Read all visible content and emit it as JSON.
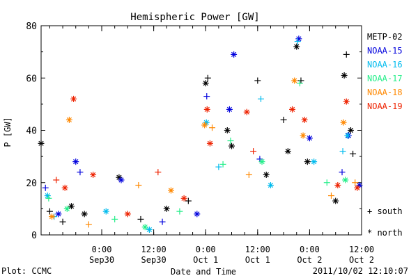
{
  "chart_data": {
    "type": "scatter",
    "title": "Hemispheric Power [GW]",
    "xlabel": "Date and Time",
    "ylabel": "P [GW]",
    "ylim": [
      0,
      80
    ],
    "xlim": [
      "2011-09-29 10:00",
      "2011-10-02 12:00"
    ],
    "y_ticks": [
      "0",
      "20",
      "40",
      "60",
      "80"
    ],
    "x_ticks": [
      {
        "t": "2011-09-30 00:00",
        "line1": "0:00",
        "line2": "Sep30"
      },
      {
        "t": "2011-09-30 12:00",
        "line1": "12:00",
        "line2": "Sep30"
      },
      {
        "t": "2011-10-01 00:00",
        "line1": "0:00",
        "line2": "Oct 1"
      },
      {
        "t": "2011-10-01 12:00",
        "line1": "12:00",
        "line2": "Oct 1"
      },
      {
        "t": "2011-10-02 00:00",
        "line1": "0:00",
        "line2": "Oct 2"
      },
      {
        "t": "2011-10-02 12:00",
        "line1": "12:00",
        "line2": "Oct 2"
      }
    ],
    "grid": false,
    "legend_position": "right",
    "symbol_legend": [
      {
        "symbol": "+",
        "label": "south"
      },
      {
        "symbol": "*",
        "label": "north"
      }
    ],
    "series": [
      {
        "name": "METP-02",
        "color": "#000000",
        "points": [
          {
            "x": "2011-09-29 10:00",
            "y": 35,
            "s": "*"
          },
          {
            "x": "2011-09-29 12:00",
            "y": 9,
            "s": "+"
          },
          {
            "x": "2011-09-29 15:00",
            "y": 5,
            "s": "+"
          },
          {
            "x": "2011-09-29 17:00",
            "y": 11,
            "s": "*"
          },
          {
            "x": "2011-09-29 20:00",
            "y": 8,
            "s": "*"
          },
          {
            "x": "2011-09-30 04:00",
            "y": 22,
            "s": "*"
          },
          {
            "x": "2011-09-30 09:00",
            "y": 6,
            "s": "+"
          },
          {
            "x": "2011-09-30 15:00",
            "y": 10,
            "s": "*"
          },
          {
            "x": "2011-09-30 20:00",
            "y": 13,
            "s": "+"
          },
          {
            "x": "2011-10-01 00:00",
            "y": 58,
            "s": "*"
          },
          {
            "x": "2011-10-01 00:30",
            "y": 60,
            "s": "+"
          },
          {
            "x": "2011-10-01 05:00",
            "y": 40,
            "s": "*"
          },
          {
            "x": "2011-10-01 06:00",
            "y": 34,
            "s": "*"
          },
          {
            "x": "2011-10-01 12:00",
            "y": 59,
            "s": "+"
          },
          {
            "x": "2011-10-01 14:00",
            "y": 23,
            "s": "*"
          },
          {
            "x": "2011-10-01 18:00",
            "y": 44,
            "s": "+"
          },
          {
            "x": "2011-10-01 19:00",
            "y": 32,
            "s": "*"
          },
          {
            "x": "2011-10-01 21:00",
            "y": 72,
            "s": "*"
          },
          {
            "x": "2011-10-01 22:00",
            "y": 59,
            "s": "+"
          },
          {
            "x": "2011-10-01 23:30",
            "y": 28,
            "s": "*"
          },
          {
            "x": "2011-10-02 06:00",
            "y": 13,
            "s": "*"
          },
          {
            "x": "2011-10-02 08:00",
            "y": 61,
            "s": "*"
          },
          {
            "x": "2011-10-02 08:30",
            "y": 69,
            "s": "+"
          },
          {
            "x": "2011-10-02 09:30",
            "y": 40,
            "s": "*"
          },
          {
            "x": "2011-10-02 10:00",
            "y": 31,
            "s": "+"
          }
        ]
      },
      {
        "name": "NOAA-15",
        "color": "#0000dd",
        "points": [
          {
            "x": "2011-09-29 11:00",
            "y": 18,
            "s": "+"
          },
          {
            "x": "2011-09-29 14:00",
            "y": 8,
            "s": "*"
          },
          {
            "x": "2011-09-29 18:00",
            "y": 28,
            "s": "*"
          },
          {
            "x": "2011-09-29 19:00",
            "y": 24,
            "s": "+"
          },
          {
            "x": "2011-09-30 04:30",
            "y": 21,
            "s": "*"
          },
          {
            "x": "2011-09-30 14:00",
            "y": 5,
            "s": "+"
          },
          {
            "x": "2011-09-30 22:00",
            "y": 8,
            "s": "*"
          },
          {
            "x": "2011-10-01 00:15",
            "y": 53,
            "s": "+"
          },
          {
            "x": "2011-10-01 05:30",
            "y": 48,
            "s": "*"
          },
          {
            "x": "2011-10-01 06:30",
            "y": 69,
            "s": "*"
          },
          {
            "x": "2011-10-01 12:30",
            "y": 29,
            "s": "+"
          },
          {
            "x": "2011-10-01 21:30",
            "y": 75,
            "s": "*"
          },
          {
            "x": "2011-10-02 00:00",
            "y": 37,
            "s": "*"
          },
          {
            "x": "2011-10-02 07:30",
            "y": 24,
            "s": "+"
          },
          {
            "x": "2011-10-02 09:00",
            "y": 38,
            "s": "*"
          },
          {
            "x": "2011-10-02 11:30",
            "y": 19,
            "s": "*"
          }
        ]
      },
      {
        "name": "NOAA-16",
        "color": "#00bbee",
        "points": [
          {
            "x": "2011-09-29 11:30",
            "y": 15,
            "s": "*"
          },
          {
            "x": "2011-09-29 13:00",
            "y": 7,
            "s": "+"
          },
          {
            "x": "2011-09-30 01:00",
            "y": 9,
            "s": "*"
          },
          {
            "x": "2011-09-30 11:00",
            "y": 2,
            "s": "*"
          },
          {
            "x": "2011-10-01 00:10",
            "y": 43,
            "s": "*"
          },
          {
            "x": "2011-10-01 03:00",
            "y": 26,
            "s": "+"
          },
          {
            "x": "2011-10-01 12:45",
            "y": 52,
            "s": "+"
          },
          {
            "x": "2011-10-01 15:00",
            "y": 19,
            "s": "*"
          },
          {
            "x": "2011-10-01 21:15",
            "y": 74,
            "s": "+"
          },
          {
            "x": "2011-10-02 01:00",
            "y": 28,
            "s": "*"
          },
          {
            "x": "2011-10-02 07:40",
            "y": 32,
            "s": "+"
          },
          {
            "x": "2011-10-02 08:45",
            "y": 38,
            "s": "*"
          }
        ]
      },
      {
        "name": "NOAA-17",
        "color": "#22ee88",
        "points": [
          {
            "x": "2011-09-29 11:45",
            "y": 14,
            "s": "+"
          },
          {
            "x": "2011-09-29 16:00",
            "y": 10,
            "s": "*"
          },
          {
            "x": "2011-09-30 03:00",
            "y": 6,
            "s": "+"
          },
          {
            "x": "2011-09-30 10:00",
            "y": 3,
            "s": "*"
          },
          {
            "x": "2011-09-30 18:00",
            "y": 9,
            "s": "+"
          },
          {
            "x": "2011-10-01 04:00",
            "y": 27,
            "s": "+"
          },
          {
            "x": "2011-10-01 05:45",
            "y": 36,
            "s": "+"
          },
          {
            "x": "2011-10-01 13:00",
            "y": 28,
            "s": "*"
          },
          {
            "x": "2011-10-01 21:45",
            "y": 58,
            "s": "+"
          },
          {
            "x": "2011-10-02 04:00",
            "y": 20,
            "s": "+"
          },
          {
            "x": "2011-10-02 08:15",
            "y": 21,
            "s": "*"
          }
        ]
      },
      {
        "name": "NOAA-18",
        "color": "#ff8800",
        "points": [
          {
            "x": "2011-09-29 12:30",
            "y": 7,
            "s": "*"
          },
          {
            "x": "2011-09-29 16:30",
            "y": 44,
            "s": "*"
          },
          {
            "x": "2011-09-29 21:00",
            "y": 4,
            "s": "+"
          },
          {
            "x": "2011-09-30 08:30",
            "y": 19,
            "s": "+"
          },
          {
            "x": "2011-09-30 16:00",
            "y": 17,
            "s": "*"
          },
          {
            "x": "2011-09-30 23:45",
            "y": 42,
            "s": "*"
          },
          {
            "x": "2011-10-01 01:30",
            "y": 41,
            "s": "+"
          },
          {
            "x": "2011-10-01 10:00",
            "y": 23,
            "s": "+"
          },
          {
            "x": "2011-10-01 20:30",
            "y": 59,
            "s": "*"
          },
          {
            "x": "2011-10-01 22:30",
            "y": 38,
            "s": "*"
          },
          {
            "x": "2011-10-02 05:00",
            "y": 15,
            "s": "+"
          },
          {
            "x": "2011-10-02 07:50",
            "y": 43,
            "s": "*"
          },
          {
            "x": "2011-10-02 10:30",
            "y": 20,
            "s": "+"
          }
        ]
      },
      {
        "name": "NOAA-19",
        "color": "#ee2200",
        "points": [
          {
            "x": "2011-09-29 13:30",
            "y": 21,
            "s": "+"
          },
          {
            "x": "2011-09-29 15:30",
            "y": 18,
            "s": "*"
          },
          {
            "x": "2011-09-29 17:30",
            "y": 52,
            "s": "*"
          },
          {
            "x": "2011-09-29 22:00",
            "y": 23,
            "s": "*"
          },
          {
            "x": "2011-09-30 06:00",
            "y": 8,
            "s": "*"
          },
          {
            "x": "2011-09-30 13:00",
            "y": 24,
            "s": "+"
          },
          {
            "x": "2011-09-30 19:00",
            "y": 14,
            "s": "*"
          },
          {
            "x": "2011-10-01 00:20",
            "y": 48,
            "s": "*"
          },
          {
            "x": "2011-10-01 01:00",
            "y": 35,
            "s": "*"
          },
          {
            "x": "2011-10-01 09:30",
            "y": 47,
            "s": "*"
          },
          {
            "x": "2011-10-01 11:00",
            "y": 32,
            "s": "+"
          },
          {
            "x": "2011-10-01 20:00",
            "y": 48,
            "s": "*"
          },
          {
            "x": "2011-10-01 22:50",
            "y": 44,
            "s": "*"
          },
          {
            "x": "2011-10-02 06:30",
            "y": 19,
            "s": "*"
          },
          {
            "x": "2011-10-02 08:30",
            "y": 51,
            "s": "*"
          },
          {
            "x": "2011-10-02 11:00",
            "y": 18,
            "s": "*"
          }
        ]
      }
    ]
  },
  "footer": {
    "plot_credit": "Plot: CCMC",
    "timestamp": "2011/10/02 12:10:07"
  }
}
